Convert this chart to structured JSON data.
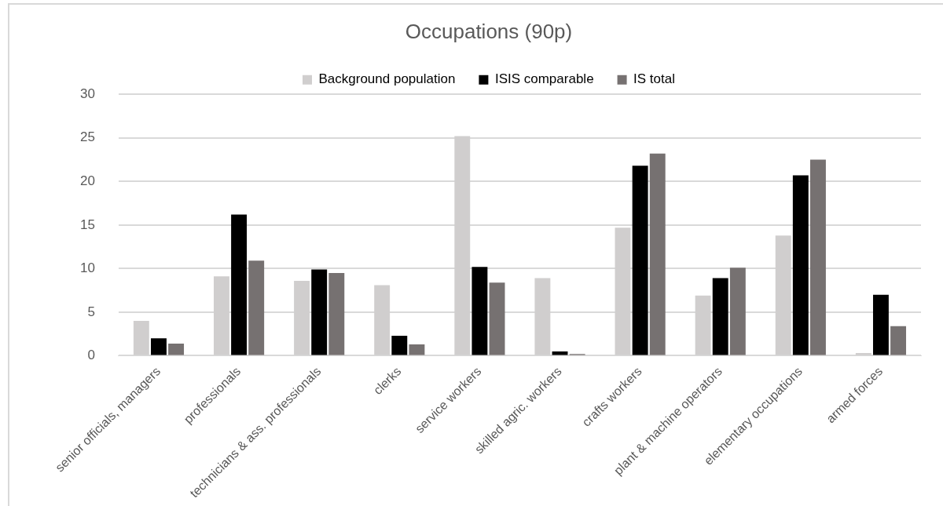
{
  "chart_data": {
    "type": "bar",
    "title": "Occupations (90p)",
    "categories": [
      "senior officials, managers",
      "professionals",
      "technicians & ass. professionals",
      "clerks",
      "service workers",
      "skilled agric. workers",
      "crafts workers",
      "plant & machine operators",
      "elementary occupations",
      "armed forces"
    ],
    "series": [
      {
        "name": "Background population",
        "color": "#d0cece",
        "values": [
          4.0,
          9.1,
          8.6,
          8.1,
          25.2,
          8.9,
          14.7,
          6.9,
          13.8,
          0.3
        ]
      },
      {
        "name": "ISIS comparable",
        "color": "#000000",
        "values": [
          2.0,
          16.2,
          9.9,
          2.3,
          10.2,
          0.5,
          21.8,
          8.9,
          20.7,
          7.0
        ]
      },
      {
        "name": "IS total",
        "color": "#767171",
        "values": [
          1.4,
          10.9,
          9.5,
          1.3,
          8.4,
          0.2,
          23.2,
          10.1,
          22.5,
          3.4
        ]
      }
    ],
    "ylim": [
      0,
      30
    ],
    "yticks": [
      0,
      5,
      10,
      15,
      20,
      25,
      30
    ],
    "grid": "y",
    "legend": "top"
  }
}
